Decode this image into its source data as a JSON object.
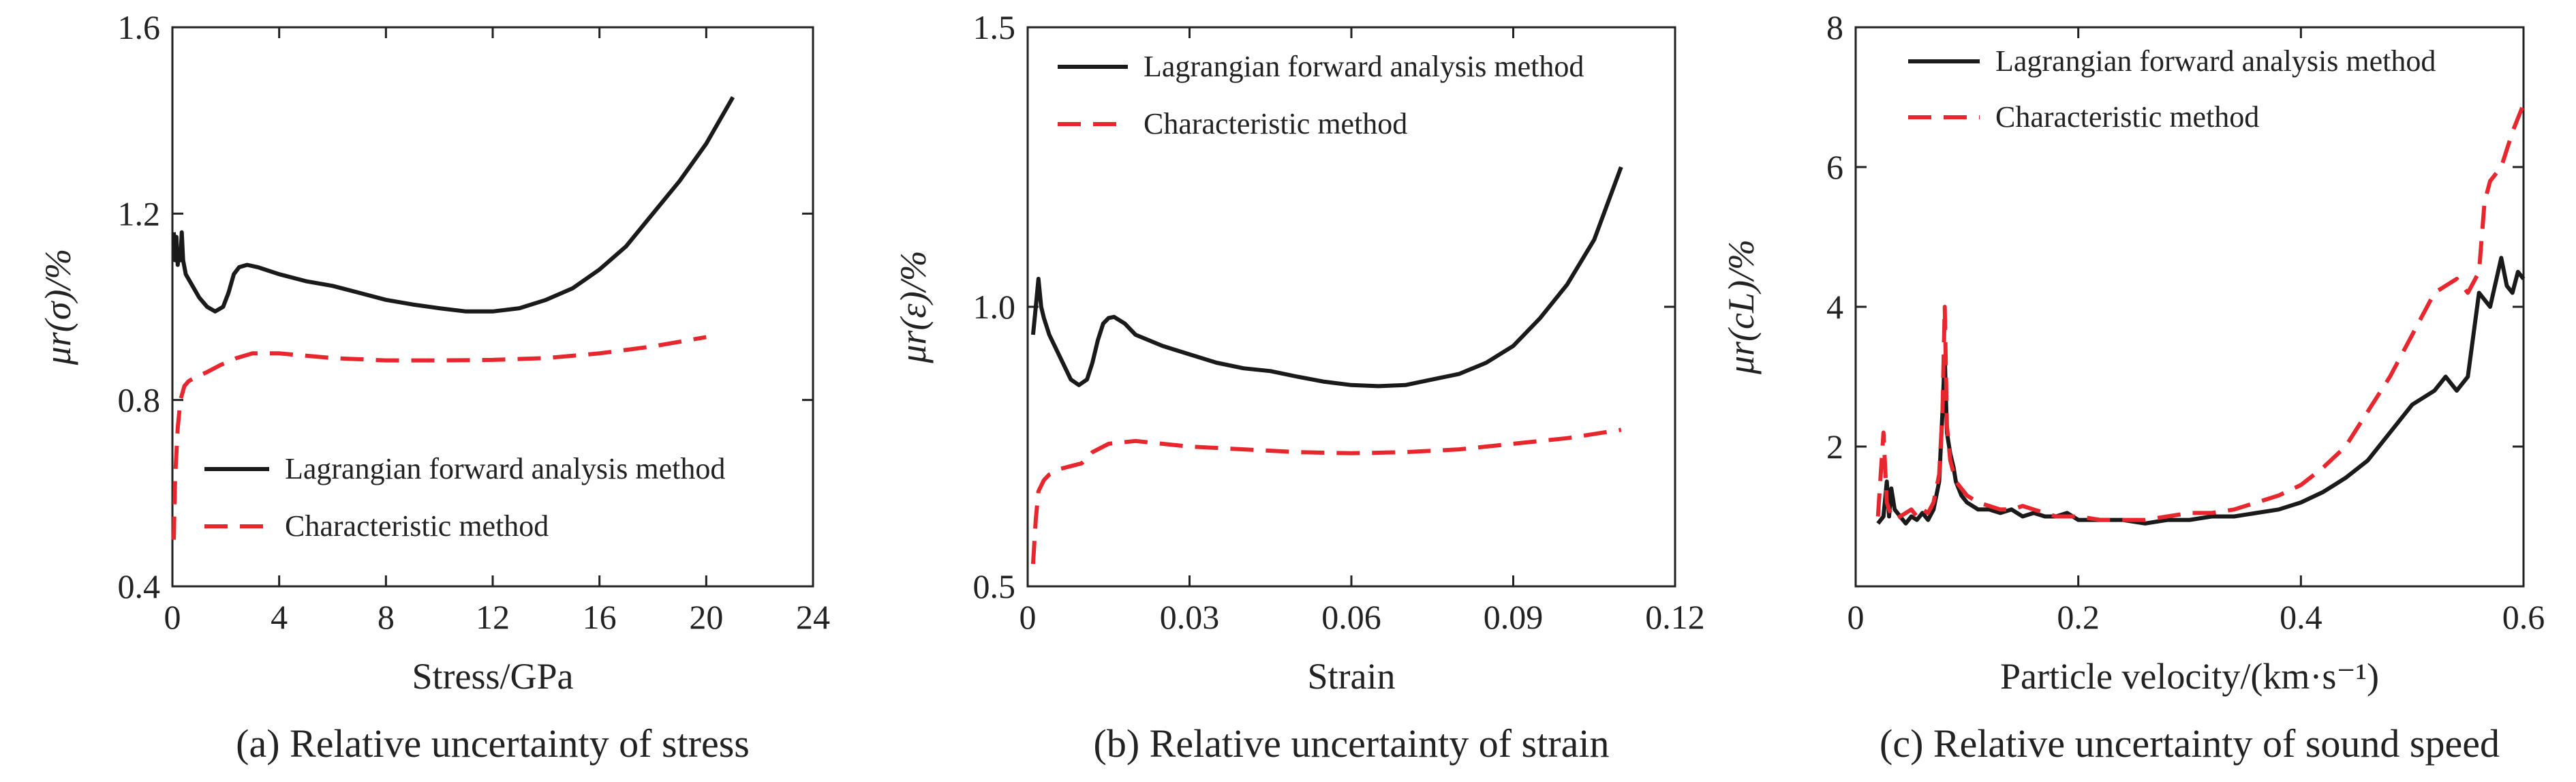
{
  "chart_data": [
    {
      "type": "line",
      "caption": "(a) Relative uncertainty of stress",
      "xlabel": "Stress/GPa",
      "ylabel": "μr(σ)/%",
      "xlim": [
        0,
        24
      ],
      "ylim": [
        0.4,
        1.6
      ],
      "xticks": [
        0,
        4,
        8,
        12,
        16,
        20,
        24
      ],
      "yticks": [
        0.4,
        0.8,
        1.2,
        1.6
      ],
      "legend_position": "bottom-left",
      "series": [
        {
          "name": "Lagrangian forward analysis method",
          "color": "#1a1a1a",
          "dash": "solid",
          "x": [
            0.05,
            0.1,
            0.15,
            0.2,
            0.25,
            0.3,
            0.35,
            0.4,
            0.5,
            0.7,
            1.0,
            1.3,
            1.6,
            1.9,
            2.1,
            2.3,
            2.5,
            2.8,
            3.2,
            4,
            5,
            6,
            7,
            8,
            9,
            10,
            11,
            12,
            13,
            14,
            15,
            16,
            17,
            18,
            19,
            20,
            21
          ],
          "y": [
            1.16,
            1.1,
            1.15,
            1.09,
            1.12,
            1.1,
            1.16,
            1.1,
            1.07,
            1.05,
            1.02,
            1.0,
            0.99,
            1.0,
            1.03,
            1.07,
            1.085,
            1.09,
            1.085,
            1.07,
            1.055,
            1.045,
            1.03,
            1.015,
            1.005,
            0.997,
            0.99,
            0.99,
            0.997,
            1.015,
            1.04,
            1.08,
            1.13,
            1.2,
            1.27,
            1.35,
            1.45
          ]
        },
        {
          "name": "Characteristic method",
          "color": "#e8262d",
          "dash": "dashed",
          "x": [
            0.05,
            0.1,
            0.2,
            0.3,
            0.45,
            0.6,
            0.9,
            1.3,
            1.8,
            2.4,
            3.0,
            4,
            6,
            8,
            10,
            12,
            14,
            16,
            18,
            20
          ],
          "y": [
            0.5,
            0.63,
            0.74,
            0.8,
            0.83,
            0.84,
            0.85,
            0.86,
            0.875,
            0.89,
            0.9,
            0.9,
            0.89,
            0.885,
            0.885,
            0.886,
            0.89,
            0.9,
            0.915,
            0.935
          ]
        }
      ]
    },
    {
      "type": "line",
      "caption": "(b) Relative uncertainty of strain",
      "xlabel": "Strain",
      "ylabel": "μr(ε)/%",
      "xlim": [
        0,
        0.12
      ],
      "ylim": [
        0.5,
        1.5
      ],
      "xticks": [
        0,
        0.03,
        0.06,
        0.09,
        0.12
      ],
      "yticks": [
        0.5,
        1.0,
        1.5
      ],
      "legend_position": "top-left",
      "series": [
        {
          "name": "Lagrangian forward analysis method",
          "color": "#1a1a1a",
          "dash": "solid",
          "x": [
            0.001,
            0.0015,
            0.002,
            0.0025,
            0.003,
            0.004,
            0.006,
            0.008,
            0.0095,
            0.011,
            0.012,
            0.013,
            0.014,
            0.015,
            0.016,
            0.018,
            0.02,
            0.025,
            0.03,
            0.035,
            0.04,
            0.045,
            0.05,
            0.055,
            0.06,
            0.065,
            0.07,
            0.075,
            0.08,
            0.085,
            0.09,
            0.095,
            0.1,
            0.105,
            0.11
          ],
          "y": [
            0.95,
            1.0,
            1.05,
            1.0,
            0.98,
            0.95,
            0.91,
            0.87,
            0.86,
            0.87,
            0.9,
            0.94,
            0.97,
            0.98,
            0.982,
            0.97,
            0.95,
            0.93,
            0.915,
            0.9,
            0.89,
            0.885,
            0.875,
            0.866,
            0.86,
            0.858,
            0.86,
            0.87,
            0.88,
            0.9,
            0.93,
            0.98,
            1.04,
            1.12,
            1.25
          ]
        },
        {
          "name": "Characteristic method",
          "color": "#e8262d",
          "dash": "dashed",
          "x": [
            0.001,
            0.0015,
            0.002,
            0.003,
            0.004,
            0.006,
            0.008,
            0.01,
            0.012,
            0.015,
            0.02,
            0.03,
            0.04,
            0.05,
            0.06,
            0.07,
            0.08,
            0.09,
            0.1,
            0.11
          ],
          "y": [
            0.54,
            0.62,
            0.67,
            0.69,
            0.7,
            0.71,
            0.715,
            0.72,
            0.74,
            0.755,
            0.76,
            0.75,
            0.745,
            0.74,
            0.738,
            0.74,
            0.745,
            0.755,
            0.765,
            0.78
          ]
        }
      ]
    },
    {
      "type": "line",
      "caption": "(c) Relative uncertainty of sound speed",
      "xlabel": "Particle velocity/(km·s⁻¹)",
      "ylabel": "μr(cL)/%",
      "xlim": [
        0,
        0.6
      ],
      "ylim": [
        0,
        8
      ],
      "xticks": [
        0,
        0.2,
        0.4,
        0.6
      ],
      "yticks": [
        2,
        4,
        6,
        8
      ],
      "legend_position": "top-left",
      "series": [
        {
          "name": "Lagrangian forward analysis method",
          "color": "#1a1a1a",
          "dash": "solid",
          "x": [
            0.02,
            0.025,
            0.028,
            0.03,
            0.032,
            0.035,
            0.04,
            0.045,
            0.05,
            0.055,
            0.06,
            0.065,
            0.07,
            0.075,
            0.078,
            0.08,
            0.082,
            0.085,
            0.088,
            0.09,
            0.095,
            0.1,
            0.11,
            0.12,
            0.13,
            0.14,
            0.15,
            0.16,
            0.17,
            0.18,
            0.19,
            0.2,
            0.22,
            0.24,
            0.26,
            0.28,
            0.3,
            0.32,
            0.34,
            0.36,
            0.38,
            0.4,
            0.42,
            0.44,
            0.46,
            0.48,
            0.5,
            0.52,
            0.53,
            0.54,
            0.55,
            0.56,
            0.57,
            0.58,
            0.585,
            0.59,
            0.595,
            0.6
          ],
          "y": [
            0.9,
            1.0,
            1.5,
            1.0,
            1.4,
            1.1,
            1.0,
            0.9,
            1.0,
            0.95,
            1.05,
            0.95,
            1.1,
            1.5,
            2.5,
            3.3,
            2.2,
            1.9,
            1.7,
            1.5,
            1.3,
            1.2,
            1.1,
            1.1,
            1.05,
            1.1,
            1.0,
            1.05,
            1.0,
            1.0,
            1.05,
            0.95,
            0.95,
            0.95,
            0.9,
            0.95,
            0.95,
            1.0,
            1.0,
            1.05,
            1.1,
            1.2,
            1.35,
            1.55,
            1.8,
            2.2,
            2.6,
            2.8,
            3.0,
            2.8,
            3.0,
            4.2,
            4.0,
            4.7,
            4.3,
            4.2,
            4.5,
            4.4
          ]
        },
        {
          "name": "Characteristic method",
          "color": "#e8262d",
          "dash": "dashed",
          "x": [
            0.02,
            0.025,
            0.028,
            0.03,
            0.033,
            0.035,
            0.04,
            0.045,
            0.05,
            0.055,
            0.06,
            0.065,
            0.07,
            0.075,
            0.078,
            0.08,
            0.082,
            0.085,
            0.09,
            0.1,
            0.11,
            0.12,
            0.13,
            0.14,
            0.15,
            0.16,
            0.17,
            0.18,
            0.2,
            0.22,
            0.24,
            0.26,
            0.28,
            0.3,
            0.32,
            0.34,
            0.36,
            0.38,
            0.4,
            0.42,
            0.44,
            0.46,
            0.48,
            0.5,
            0.52,
            0.54,
            0.55,
            0.56,
            0.565,
            0.57,
            0.58,
            0.59,
            0.6
          ],
          "y": [
            1.0,
            2.2,
            1.2,
            1.1,
            1.0,
            0.95,
            1.0,
            1.05,
            1.1,
            1.0,
            1.1,
            1.05,
            1.2,
            1.6,
            2.5,
            4.0,
            2.3,
            1.8,
            1.5,
            1.3,
            1.2,
            1.15,
            1.1,
            1.1,
            1.15,
            1.1,
            1.05,
            1.0,
            1.0,
            0.95,
            0.95,
            0.95,
            1.0,
            1.05,
            1.05,
            1.1,
            1.2,
            1.3,
            1.45,
            1.7,
            2.0,
            2.5,
            3.0,
            3.6,
            4.2,
            4.4,
            4.2,
            4.5,
            5.5,
            5.8,
            6.0,
            6.5,
            6.9
          ]
        }
      ]
    }
  ]
}
